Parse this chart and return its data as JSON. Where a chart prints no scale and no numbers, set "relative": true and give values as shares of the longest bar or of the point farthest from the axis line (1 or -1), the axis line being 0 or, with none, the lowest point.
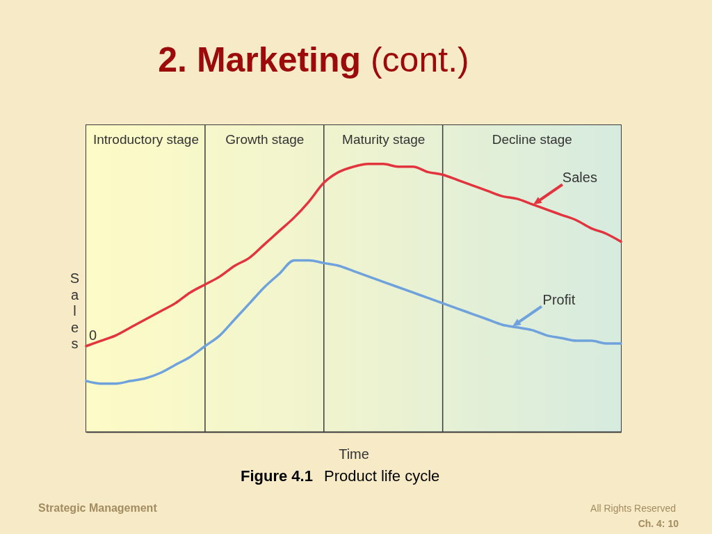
{
  "chart_data": {
    "type": "line",
    "title": "2. Marketing (cont.)",
    "xlabel": "Time",
    "ylabel": "Sales",
    "relative": true,
    "tick_labels": "x",
    "grid": "x",
    "categories": [
      null,
      null,
      null,
      null,
      "Introductory stage",
      null,
      null,
      null,
      null,
      null,
      null,
      null,
      "Growth stage",
      null,
      null,
      null,
      null,
      null,
      null,
      null,
      "Maturity stage",
      null,
      null,
      null,
      null,
      null,
      null,
      null,
      null,
      null,
      "Decline stage",
      null,
      null,
      null,
      null,
      null,
      null
    ],
    "series": [
      {
        "name": "Sales",
        "color": "#e2343f",
        "values": [
          0.32,
          0.34,
          0.36,
          0.39,
          0.42,
          0.45,
          0.48,
          0.52,
          0.55,
          0.58,
          0.62,
          0.65,
          0.7,
          0.75,
          0.8,
          0.86,
          0.93,
          0.97,
          0.99,
          1,
          1,
          0.99,
          0.99,
          0.97,
          0.96,
          0.94,
          0.92,
          0.9,
          0.88,
          0.87,
          0.85,
          0.83,
          0.81,
          0.79,
          0.76,
          0.74,
          0.71
        ]
      },
      {
        "name": "Profit",
        "color": "#6fa2dd",
        "values": [
          0.19,
          0.18,
          0.18,
          0.19,
          0.2,
          0.22,
          0.25,
          0.28,
          0.32,
          0.36,
          0.42,
          0.48,
          0.54,
          0.59,
          0.64,
          0.64,
          0.63,
          0.62,
          0.6,
          0.58,
          0.56,
          0.54,
          0.52,
          0.5,
          0.48,
          0.46,
          0.44,
          0.42,
          0.4,
          0.39,
          0.38,
          0.36,
          0.35,
          0.34,
          0.34,
          0.33,
          0.33
        ]
      }
    ],
    "annotations": [
      {
        "text": "0",
        "y": 0.32
      },
      "Figure 4.1",
      "Product life cycle",
      "Strategic Management",
      "All Rights Reserved",
      "Ch. 4: 10"
    ]
  }
}
